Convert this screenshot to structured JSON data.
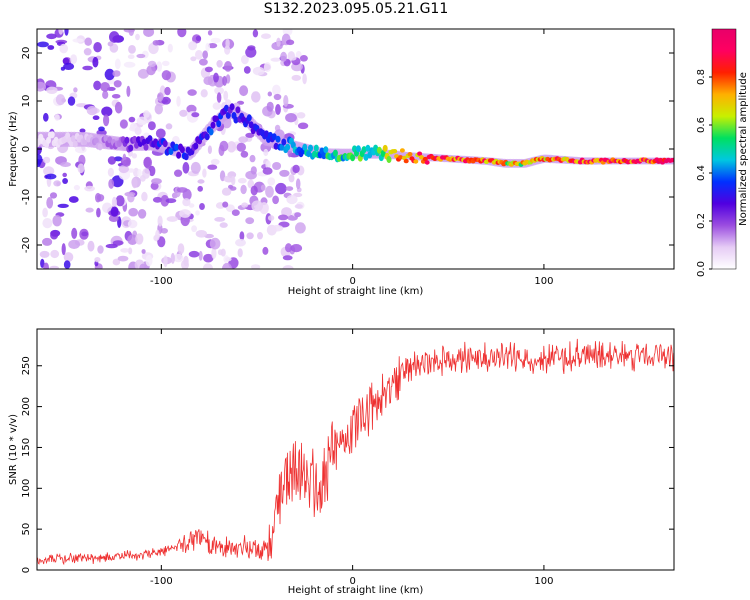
{
  "chart_data": [
    {
      "type": "heatmap",
      "title": "S132.2023.095.05.21.G11",
      "xlabel": "Height of straight line (km)",
      "ylabel": "Frequency (Hz)",
      "xlim": [
        -165,
        168
      ],
      "ylim": [
        -25,
        25
      ],
      "xticks": [
        -100,
        0,
        100
      ],
      "yticks": [
        -20,
        -10,
        0,
        10,
        20
      ],
      "grid": false,
      "colorbar": {
        "label": "Normalized spectral amplitude",
        "range": [
          0.0,
          1.0
        ],
        "ticks": [
          0.0,
          0.2,
          0.4,
          0.6,
          0.8
        ],
        "tick_labels": [
          "0.0",
          "0.2",
          "0.4",
          "0.6",
          "0.8"
        ],
        "colormap": [
          "#ffffff",
          "#e6ccf5",
          "#9b4de0",
          "#5000e0",
          "#0030ff",
          "#00c8e0",
          "#00e060",
          "#c8f000",
          "#ffb000",
          "#ff2000",
          "#ff0060",
          "#e8006a"
        ]
      },
      "ridge": {
        "x": [
          -160,
          -140,
          -120,
          -105,
          -95,
          -85,
          -75,
          -65,
          -55,
          -45,
          -35,
          -25,
          -15,
          0,
          15,
          30,
          50,
          70,
          80,
          90,
          100,
          120,
          140,
          168
        ],
        "frequency": [
          2,
          2,
          1,
          1,
          0,
          -1,
          4,
          8,
          6,
          2,
          1,
          0,
          -1,
          -1,
          -1,
          -1.5,
          -2,
          -2.5,
          -3,
          -3,
          -2,
          -2.5,
          -2.5,
          -2.5
        ],
        "amplitude": [
          0.05,
          0.1,
          0.2,
          0.3,
          0.35,
          0.3,
          0.35,
          0.3,
          0.3,
          0.3,
          0.4,
          0.45,
          0.5,
          0.55,
          0.6,
          0.8,
          0.85,
          0.8,
          0.7,
          0.7,
          0.75,
          0.85,
          0.9,
          0.9
        ]
      }
    },
    {
      "type": "line",
      "title": "",
      "xlabel": "Height of straight line (km)",
      "ylabel": "SNR (10 * v/v)",
      "xlim": [
        -165,
        168
      ],
      "ylim": [
        0,
        295
      ],
      "xticks": [
        -100,
        0,
        100
      ],
      "yticks": [
        0,
        50,
        100,
        150,
        200,
        250
      ],
      "grid": false,
      "series": [
        {
          "color": "#ee3030",
          "x": [
            -165,
            -150,
            -130,
            -110,
            -95,
            -85,
            -80,
            -75,
            -65,
            -55,
            -45,
            -40,
            -35,
            -30,
            -25,
            -20,
            -15,
            -10,
            -5,
            0,
            5,
            10,
            15,
            20,
            25,
            30,
            40,
            50,
            60,
            80,
            100,
            120,
            140,
            160,
            168
          ],
          "y": [
            12,
            14,
            15,
            18,
            25,
            38,
            42,
            30,
            28,
            25,
            30,
            60,
            110,
            130,
            120,
            100,
            110,
            150,
            160,
            170,
            190,
            200,
            215,
            220,
            240,
            250,
            255,
            258,
            258,
            260,
            258,
            262,
            262,
            265,
            262
          ]
        }
      ]
    }
  ]
}
